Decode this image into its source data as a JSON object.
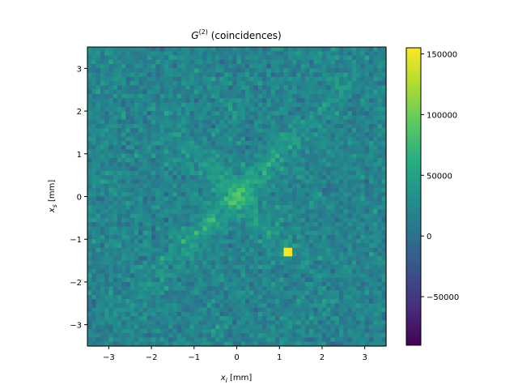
{
  "chart_data": {
    "type": "heatmap",
    "title_main": "G",
    "title_sup": "(2)",
    "title_rest": " (coincidences)",
    "xlabel_var": "x",
    "xlabel_sub": "i",
    "xlabel_unit": " [mm]",
    "ylabel_var": "x",
    "ylabel_sub": "s",
    "ylabel_unit": " [mm]",
    "xlim": [
      -3.5,
      3.5
    ],
    "ylim": [
      -3.5,
      3.5
    ],
    "x_ticks": [
      -3,
      -2,
      -1,
      0,
      1,
      2,
      3
    ],
    "y_ticks": [
      -3,
      -2,
      -1,
      0,
      1,
      2,
      3
    ],
    "x_tick_labels": [
      "−3",
      "−2",
      "−1",
      "0",
      "1",
      "2",
      "3"
    ],
    "y_tick_labels": [
      "−3",
      "−2",
      "−1",
      "0",
      "1",
      "2",
      "3"
    ],
    "grid_size": 70,
    "colormap": "viridis",
    "value_range": [
      -90000,
      155000
    ],
    "colorbar_ticks": [
      -50000,
      0,
      50000,
      100000,
      150000
    ],
    "colorbar_tick_labels": [
      "−50000",
      "0",
      "50000",
      "100000",
      "150000"
    ],
    "features": "background noise around 0 to 40000 with a brighter anti-diagonal and diagonal correlation band through the origin; peak near (1.2, -1.3)",
    "colors": {
      "min": "#440154",
      "mid": "#21918c",
      "max": "#fde725"
    }
  }
}
